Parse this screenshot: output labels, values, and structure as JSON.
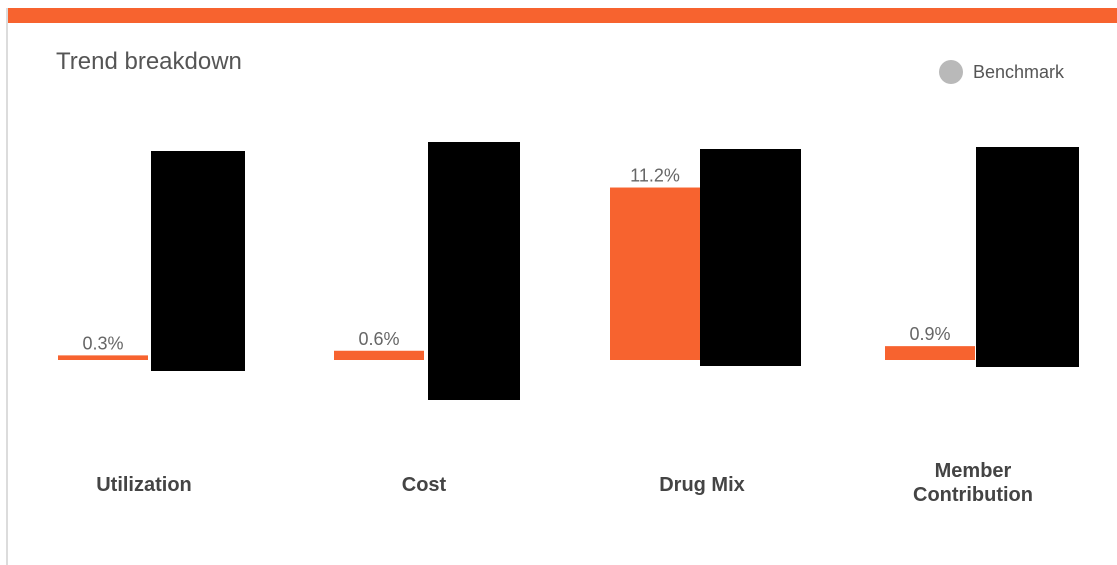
{
  "card": {
    "title": "Trend breakdown"
  },
  "legend": {
    "items": [
      {
        "name": "Benchmark",
        "color": "#b9b9b9"
      }
    ]
  },
  "colors": {
    "accent": "#f7632f",
    "benchmark": "#b9b9b9",
    "redaction": "#000000"
  },
  "chart_data": {
    "type": "bar",
    "title": "Trend breakdown",
    "categories": [
      "Utilization",
      "Cost",
      "Drug Mix",
      "Member Contribution"
    ],
    "category_lines": [
      [
        "Utilization"
      ],
      [
        "Cost"
      ],
      [
        "Drug Mix"
      ],
      [
        "Member",
        "Contribution"
      ]
    ],
    "series": [
      {
        "color": "#f7632f",
        "values": [
          0.3,
          0.6,
          11.2,
          0.9
        ],
        "labels": [
          "0.3%",
          "0.6%",
          "11.2%",
          "0.9%"
        ]
      },
      {
        "name": "Benchmark",
        "color": "#b9b9b9",
        "values": [
          null,
          null,
          null,
          null
        ],
        "redacted": true
      }
    ],
    "xlabel": "",
    "ylabel": "",
    "grid": false,
    "legend_position": "top-right"
  }
}
